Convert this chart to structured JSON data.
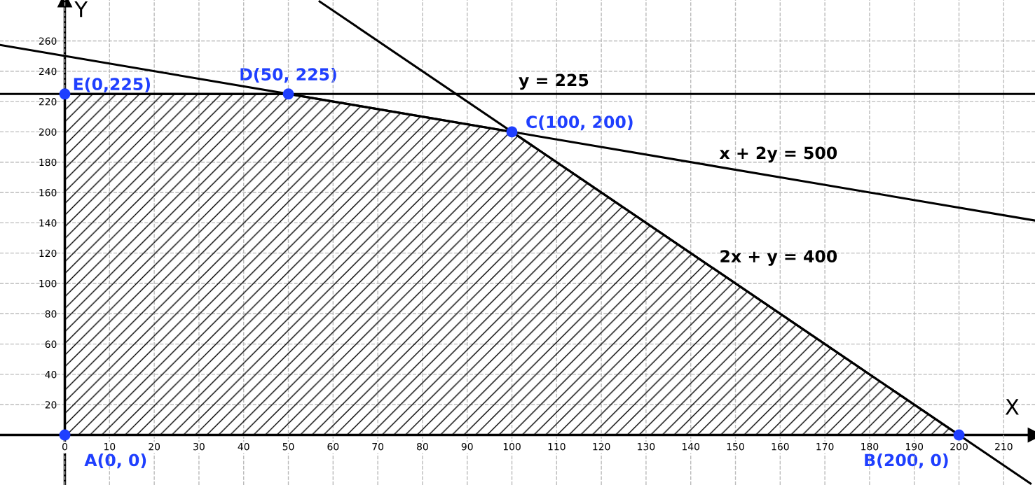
{
  "chart_data": {
    "type": "line",
    "xlabel": "X",
    "ylabel": "Y",
    "xlim": [
      -14.5,
      217
    ],
    "ylim": [
      -33,
      287
    ],
    "xticks": [
      0,
      10,
      20,
      30,
      40,
      50,
      60,
      70,
      80,
      90,
      100,
      110,
      120,
      130,
      140,
      150,
      160,
      170,
      180,
      190,
      200,
      210
    ],
    "yticks": [
      {
        "value": 0,
        "label": null
      },
      20,
      40,
      60,
      80,
      100,
      120,
      140,
      160,
      180,
      200,
      220,
      240,
      260
    ],
    "grid": true,
    "legend": false,
    "series": [
      {
        "type": "area",
        "color": "#000000",
        "x": [
          0,
          50,
          100,
          200
        ],
        "values": [
          225,
          225,
          200,
          0
        ]
      },
      {
        "color": "#000000",
        "x": [
          -14.5,
          217
        ],
        "values": [
          225,
          225
        ]
      },
      {
        "color": "#000000",
        "x": [
          -14.5,
          217
        ],
        "values": [
          257.3,
          141.5
        ]
      },
      {
        "color": "#000000",
        "x": [
          57,
          216
        ],
        "values": [
          286,
          -32
        ]
      },
      {
        "type": "scatter",
        "color": "#1f3fff",
        "x": [
          0,
          200,
          100,
          50,
          0
        ],
        "values": [
          0,
          0,
          200,
          225,
          225
        ],
        "value_labels": [
          "A(0, 0)",
          "B(200, 0)",
          "C(100, 200)",
          "D(50, 225)",
          "E(0,225)"
        ]
      }
    ],
    "annotations": [
      "y = 225",
      "x + 2y = 500",
      "2x + y = 400"
    ]
  }
}
